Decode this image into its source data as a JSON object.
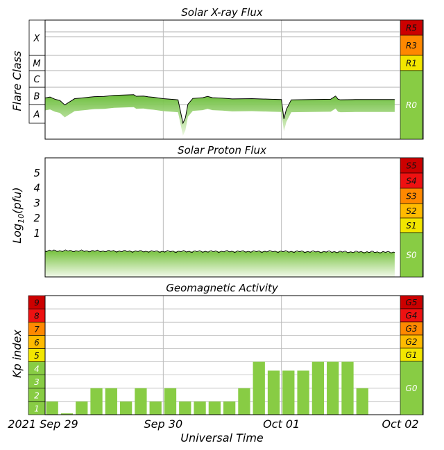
{
  "chart_data": [
    {
      "type": "line",
      "title": "Solar X-ray Flux",
      "ylabel": "Flare Class",
      "y_scale": "log",
      "ylim": [
        1e-09,
        0.001
      ],
      "y_class_labels": [
        "A",
        "B",
        "C",
        "M",
        "X"
      ],
      "scale_bands": [
        {
          "label": "R5",
          "color": "#cc0000"
        },
        {
          "label": "R3",
          "color": "#ff8800"
        },
        {
          "label": "R1",
          "color": "#f2e600"
        },
        {
          "label": "R0",
          "color": "#88cc44"
        }
      ],
      "series": [
        {
          "x": [
            "2021-09-29T00:00Z",
            "2021-09-29T01:00Z",
            "2021-09-29T02:00Z",
            "2021-09-29T03:00Z",
            "2021-09-29T04:00Z",
            "2021-09-29T06:00Z",
            "2021-09-29T08:00Z",
            "2021-09-29T10:00Z",
            "2021-09-29T12:00Z",
            "2021-09-29T14:00Z",
            "2021-09-29T18:00Z",
            "2021-09-29T18:30Z",
            "2021-09-29T20:00Z",
            "2021-09-29T21:00Z",
            "2021-09-29T22:00Z",
            "2021-09-30T00:00Z",
            "2021-09-30T03:00Z",
            "2021-09-30T04:00Z",
            "2021-09-30T04:30Z",
            "2021-09-30T05:00Z",
            "2021-09-30T06:00Z",
            "2021-09-30T08:00Z",
            "2021-09-30T09:00Z",
            "2021-09-30T10:00Z",
            "2021-09-30T12:00Z",
            "2021-09-30T14:00Z",
            "2021-09-30T18:00Z",
            "2021-09-30T22:00Z",
            "2021-10-01T00:00Z",
            "2021-10-01T00:30Z",
            "2021-10-01T01:00Z",
            "2021-10-01T02:00Z",
            "2021-10-01T06:00Z",
            "2021-10-01T10:00Z",
            "2021-10-01T11:00Z",
            "2021-10-01T11:30Z",
            "2021-10-01T12:00Z",
            "2021-10-01T15:00Z",
            "2021-10-01T18:00Z",
            "2021-10-01T21:00Z",
            "2021-10-01T23:00Z"
          ],
          "values": [
            3.1e-07,
            3.5e-07,
            2.6e-07,
            2.2e-07,
            1.2e-07,
            2.8e-07,
            3.2e-07,
            3.7e-07,
            3.8e-07,
            4.4e-07,
            4.8e-07,
            3.9e-07,
            4e-07,
            3.6e-07,
            3.4e-07,
            2.8e-07,
            2.4e-07,
            1e-08,
            2.1e-08,
            1.3e-07,
            2.9e-07,
            3.2e-07,
            3.8e-07,
            3.2e-07,
            3e-07,
            2.7e-07,
            2.8e-07,
            2.6e-07,
            2.5e-07,
            1.8e-08,
            6.5e-08,
            2.4e-07,
            2.5e-07,
            2.6e-07,
            4e-07,
            2.6e-07,
            2.4e-07,
            2.5e-07,
            2.5e-07,
            2.5e-07,
            2.5e-07
          ]
        }
      ]
    },
    {
      "type": "area",
      "title": "Solar Proton Flux",
      "ylabel": "Log10(pfu)",
      "y_tick_labels": [
        "1",
        "2",
        "3",
        "4",
        "5"
      ],
      "ylim": [
        -1.5,
        6
      ],
      "scale_bands": [
        {
          "label": "S5",
          "color": "#cc0000"
        },
        {
          "label": "S4",
          "color": "#ee1111"
        },
        {
          "label": "S3",
          "color": "#ff8800"
        },
        {
          "label": "S2",
          "color": "#ffbb00"
        },
        {
          "label": "S1",
          "color": "#f2e600"
        },
        {
          "label": "S0",
          "color": "#88cc44"
        }
      ],
      "series": [
        {
          "x": [
            "2021-09-29T00:00Z",
            "2021-09-30T00:00Z",
            "2021-10-01T00:00Z",
            "2021-10-01T23:00Z"
          ],
          "values": [
            -0.2,
            -0.25,
            -0.25,
            -0.3
          ]
        }
      ]
    },
    {
      "type": "bar",
      "title": "Geomagnetic Activity",
      "ylabel": "Kp index",
      "ylim": [
        0,
        9
      ],
      "y_tick_labels": [
        "1",
        "2",
        "3",
        "4",
        "5",
        "6",
        "7",
        "8",
        "9"
      ],
      "scale_bands": [
        {
          "label": "G5",
          "color": "#cc0000"
        },
        {
          "label": "G4",
          "color": "#ee1111"
        },
        {
          "label": "G3",
          "color": "#ff8800"
        },
        {
          "label": "G2",
          "color": "#ffbb00"
        },
        {
          "label": "G1",
          "color": "#f2e600"
        },
        {
          "label": "G0",
          "color": "#88cc44"
        }
      ],
      "bar_color": "#88cc44",
      "series": [
        {
          "x_start_hours": [
            0,
            3,
            6,
            9,
            12,
            15,
            18,
            21,
            24,
            27,
            30,
            33,
            36,
            39,
            42,
            45,
            48,
            51,
            54,
            57,
            60,
            63,
            66,
            69
          ],
          "values": [
            1,
            0.1,
            1,
            2,
            2,
            1,
            2,
            1,
            2,
            1,
            1,
            1,
            1,
            2,
            4,
            3.33,
            3.33,
            3.33,
            4,
            4,
            4,
            2,
            0,
            0
          ]
        }
      ]
    }
  ],
  "x_axis": {
    "tick_labels": [
      "2021 Sep 29",
      "Sep 30",
      "Oct 01",
      "Oct 02"
    ],
    "xlabel": "Universal Time",
    "range_hours": [
      0,
      72
    ]
  },
  "colors": {
    "grid": "#bbbbbb",
    "frame": "#000000",
    "fill_top": "#66bb33",
    "fill_bottom": "#e8f5dc"
  }
}
